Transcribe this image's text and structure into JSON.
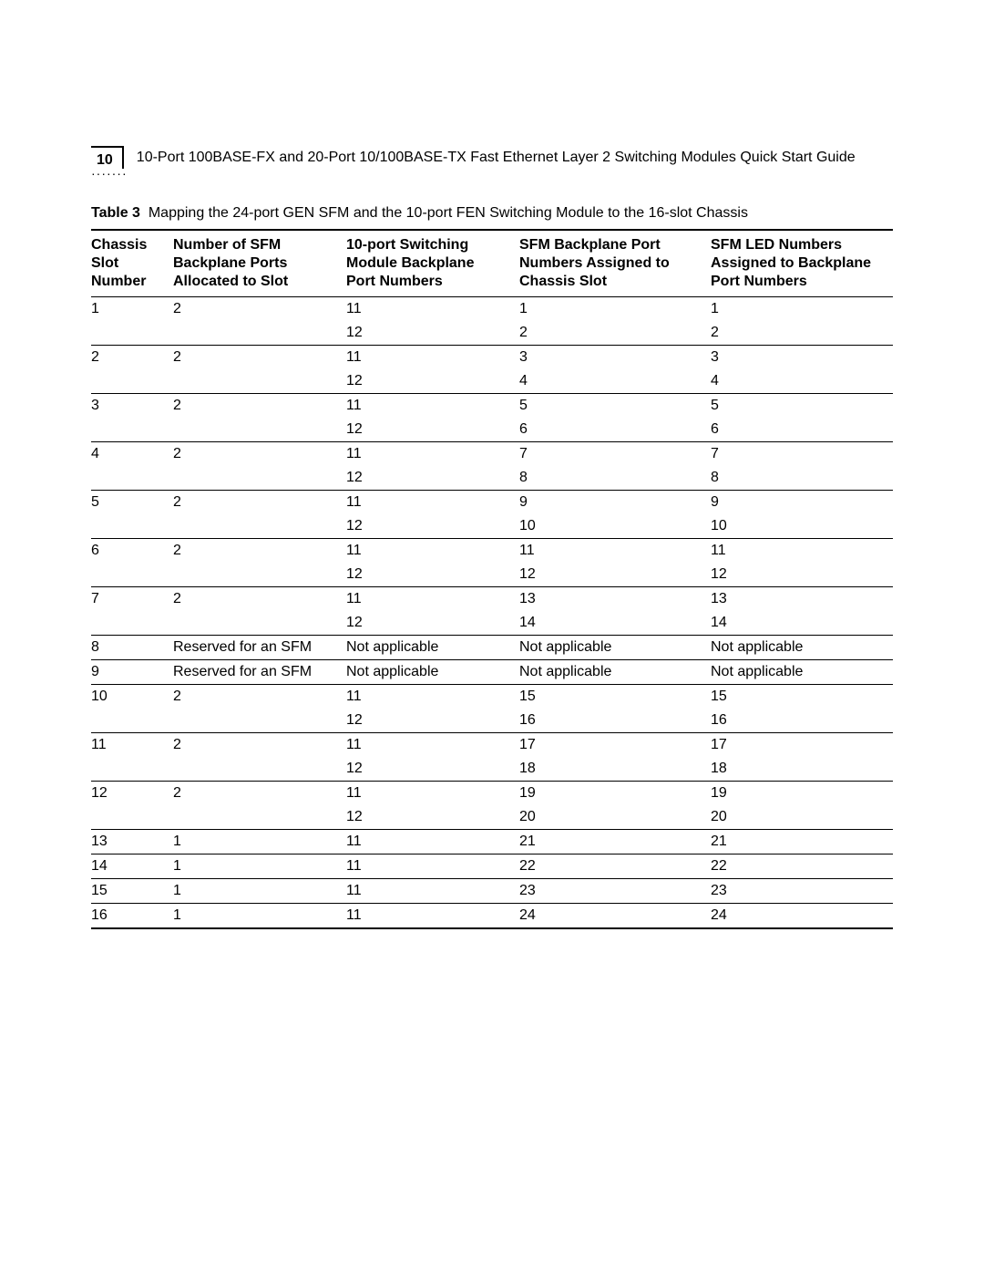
{
  "header": {
    "page_number": "10",
    "title": "10-Port 100BASE-FX and 20-Port 10/100BASE-TX Fast Ethernet Layer 2 Switching Modules Quick Start Guide"
  },
  "table": {
    "caption_label": "Table 3",
    "caption_text": "Mapping the 24-port GEN SFM and the 10-port FEN Switching Module to the 16-slot Chassis",
    "columns": [
      "Chassis Slot Number",
      "Number of SFM Backplane Ports Allocated to Slot",
      "10-port Switching Module Backplane Port Numbers",
      "SFM Backplane Port Numbers Assigned to Chassis Slot",
      "SFM LED Numbers Assigned to Backplane Port Numbers"
    ],
    "rows": [
      {
        "divider": false,
        "cells": [
          "1",
          "2",
          "11",
          "1",
          "1"
        ]
      },
      {
        "divider": false,
        "cells": [
          "",
          "",
          "12",
          "2",
          "2"
        ]
      },
      {
        "divider": true,
        "cells": [
          "2",
          "2",
          "11",
          "3",
          "3"
        ]
      },
      {
        "divider": false,
        "cells": [
          "",
          "",
          "12",
          "4",
          "4"
        ]
      },
      {
        "divider": true,
        "cells": [
          "3",
          "2",
          "11",
          "5",
          "5"
        ]
      },
      {
        "divider": false,
        "cells": [
          "",
          "",
          "12",
          "6",
          "6"
        ]
      },
      {
        "divider": true,
        "cells": [
          "4",
          "2",
          "11",
          "7",
          "7"
        ]
      },
      {
        "divider": false,
        "cells": [
          "",
          "",
          "12",
          "8",
          "8"
        ]
      },
      {
        "divider": true,
        "cells": [
          "5",
          "2",
          "11",
          "9",
          "9"
        ]
      },
      {
        "divider": false,
        "cells": [
          "",
          "",
          "12",
          "10",
          "10"
        ]
      },
      {
        "divider": true,
        "cells": [
          "6",
          "2",
          "11",
          "11",
          "11"
        ]
      },
      {
        "divider": false,
        "cells": [
          "",
          "",
          "12",
          "12",
          "12"
        ]
      },
      {
        "divider": true,
        "cells": [
          "7",
          "2",
          "11",
          "13",
          "13"
        ]
      },
      {
        "divider": false,
        "cells": [
          "",
          "",
          "12",
          "14",
          "14"
        ]
      },
      {
        "divider": true,
        "cells": [
          "8",
          "Reserved for an SFM",
          "Not applicable",
          "Not applicable",
          "Not applicable"
        ]
      },
      {
        "divider": true,
        "cells": [
          "9",
          "Reserved for an SFM",
          "Not applicable",
          "Not applicable",
          "Not applicable"
        ]
      },
      {
        "divider": true,
        "cells": [
          "10",
          "2",
          "11",
          "15",
          "15"
        ]
      },
      {
        "divider": false,
        "cells": [
          "",
          "",
          "12",
          "16",
          "16"
        ]
      },
      {
        "divider": true,
        "cells": [
          "11",
          "2",
          "11",
          "17",
          "17"
        ]
      },
      {
        "divider": false,
        "cells": [
          "",
          "",
          "12",
          "18",
          "18"
        ]
      },
      {
        "divider": true,
        "cells": [
          "12",
          "2",
          "11",
          "19",
          "19"
        ]
      },
      {
        "divider": false,
        "cells": [
          "",
          "",
          "12",
          "20",
          "20"
        ]
      },
      {
        "divider": true,
        "cells": [
          "13",
          "1",
          "11",
          "21",
          "21"
        ]
      },
      {
        "divider": true,
        "cells": [
          "14",
          "1",
          "11",
          "22",
          "22"
        ]
      },
      {
        "divider": true,
        "cells": [
          "15",
          "1",
          "11",
          "23",
          "23"
        ]
      },
      {
        "divider": true,
        "cells": [
          "16",
          "1",
          "11",
          "24",
          "24"
        ]
      }
    ]
  }
}
